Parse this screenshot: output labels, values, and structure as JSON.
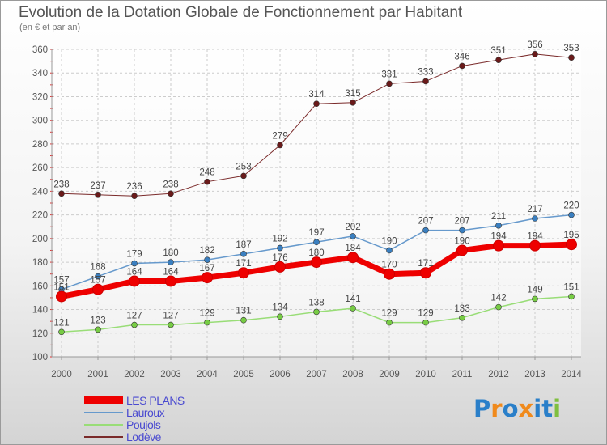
{
  "header": {
    "title": "Evolution de la Dotation Globale de Fonctionnement par Habitant",
    "subtitle": "(en € et par an)"
  },
  "legend": [
    {
      "label": "LES PLANS",
      "color": "#ee0000"
    },
    {
      "label": "Lauroux",
      "color": "#6699cc"
    },
    {
      "label": "Poujols",
      "color": "#99cc66"
    },
    {
      "label": "Lodève",
      "color": "#884444"
    }
  ],
  "logo": {
    "letters": [
      "P",
      "r",
      "o",
      "x",
      "i",
      "t",
      "i"
    ],
    "colors": [
      "#2a7fc9",
      "#f08a1c",
      "#2a7fc9",
      "#f08a1c",
      "#2a7fc9",
      "#2a7fc9",
      "#7fbf3f"
    ]
  },
  "chart_data": {
    "type": "line",
    "title": "Evolution de la Dotation Globale de Fonctionnement par Habitant",
    "ylabel": "(en € et par an)",
    "xlabel": "",
    "x": [
      "2000",
      "2001",
      "2002",
      "2003",
      "2004",
      "2005",
      "2006",
      "2007",
      "2008",
      "2009",
      "2010",
      "2011",
      "2012",
      "2013",
      "2014"
    ],
    "ylim": [
      100,
      360
    ],
    "yticks": [
      100,
      120,
      140,
      160,
      180,
      200,
      220,
      240,
      260,
      280,
      300,
      320,
      340,
      360
    ],
    "grid": true,
    "series": [
      {
        "name": "Lodève",
        "color": "#7a2a2a",
        "marker": "#6a1a1a",
        "width": 1,
        "values": [
          238,
          237,
          236,
          238,
          248,
          253,
          279,
          314,
          315,
          331,
          333,
          346,
          351,
          356,
          353
        ]
      },
      {
        "name": "Lauroux",
        "color": "#6699cc",
        "marker": "#3a7fc0",
        "width": 1.5,
        "values": [
          157,
          168,
          179,
          180,
          182,
          187,
          192,
          197,
          202,
          190,
          207,
          207,
          211,
          217,
          220
        ]
      },
      {
        "name": "Poujols",
        "color": "#99dd77",
        "marker": "#77cc44",
        "width": 1.5,
        "values": [
          121,
          123,
          127,
          127,
          129,
          131,
          134,
          138,
          141,
          129,
          129,
          133,
          142,
          149,
          151
        ]
      },
      {
        "name": "LES PLANS",
        "color": "#ee0000",
        "marker": "#ee0000",
        "width": 7,
        "values": [
          151,
          157,
          164,
          164,
          167,
          171,
          176,
          180,
          184,
          170,
          171,
          190,
          194,
          194,
          195
        ]
      }
    ]
  }
}
